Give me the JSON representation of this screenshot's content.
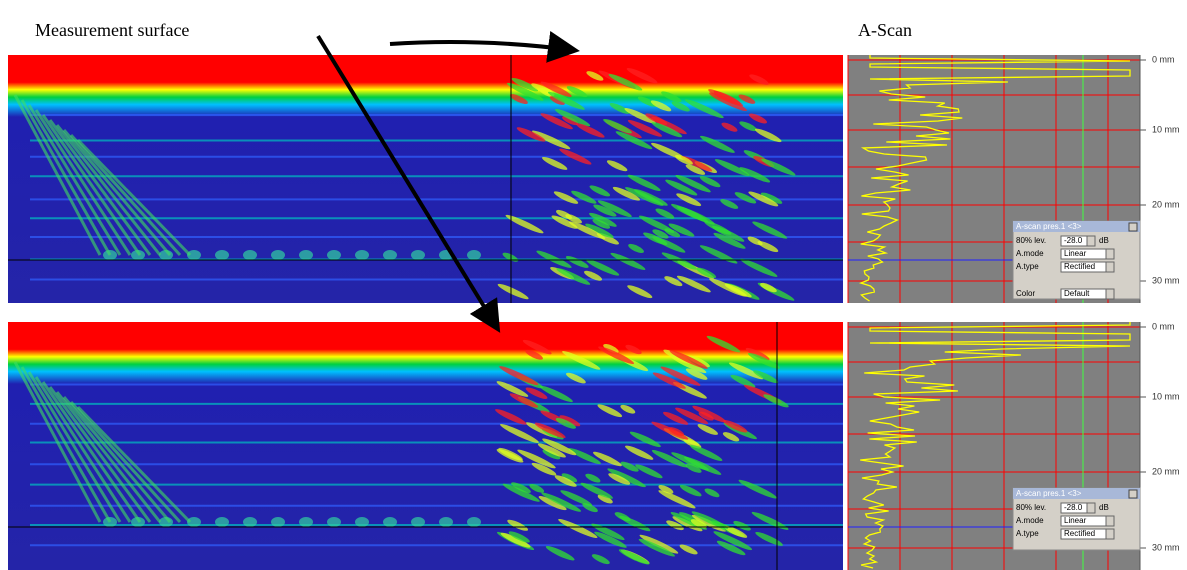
{
  "labels": {
    "measurement_surface": "Measurement surface",
    "a_scan": "A-Scan"
  },
  "panels": [
    {
      "depth_ticks": [
        "0 mm",
        "10 mm",
        "20 mm",
        "30 mm"
      ],
      "dialog": {
        "title": "A-scan pres.1 <3>",
        "rows": [
          [
            "80% lev.",
            "-28.0",
            "dB"
          ],
          [
            "A.mode",
            "Linear"
          ],
          [
            "A.type",
            "Rectified"
          ],
          [
            "Color",
            "Default"
          ]
        ]
      }
    },
    {
      "depth_ticks": [
        "0 mm",
        "10 mm",
        "20 mm",
        "30 mm"
      ],
      "dialog": {
        "title": "A-scan pres.1 <3>",
        "rows": [
          [
            "80% lev.",
            "-28.0",
            "dB"
          ],
          [
            "A.mode",
            "Linear"
          ],
          [
            "A.type",
            "Rectified"
          ]
        ]
      }
    }
  ]
}
